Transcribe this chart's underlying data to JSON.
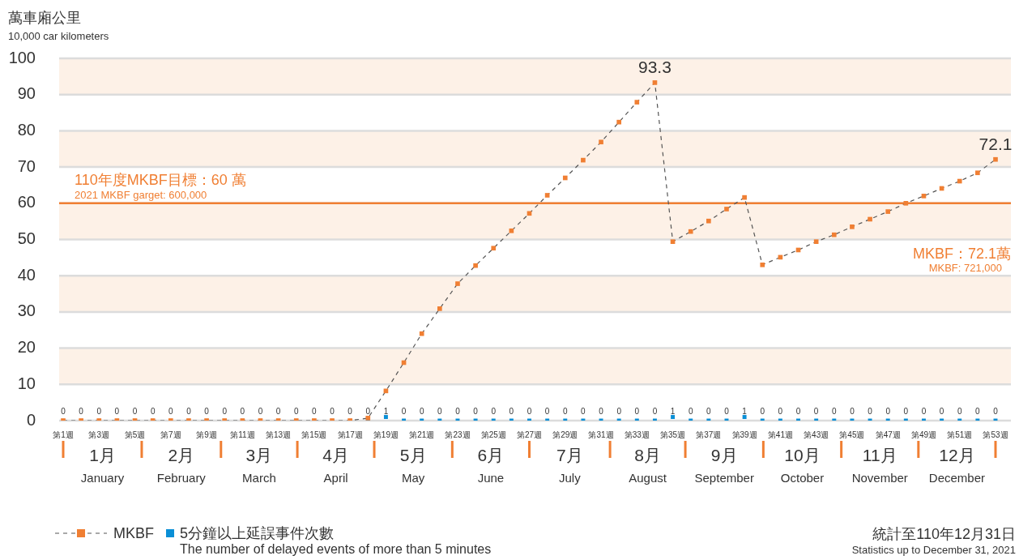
{
  "chart_data": {
    "type": "line",
    "ylabel": "萬車廂公里",
    "categories": [
      "第1週",
      null,
      "第3週",
      null,
      "第5週",
      null,
      "第7週",
      null,
      "第9週",
      null,
      "第11週",
      null,
      "第13週",
      null,
      "第15週",
      null,
      "第17週",
      null,
      "第19週",
      null,
      "第21週",
      null,
      "第23週",
      null,
      "第25週",
      null,
      "第27週",
      null,
      "第29週",
      null,
      "第31週",
      null,
      "第33週",
      null,
      "第35週",
      null,
      "第37週",
      null,
      "第39週",
      null,
      "第41週",
      null,
      "第43週",
      null,
      "第45週",
      null,
      "第47週",
      null,
      "第49週",
      null,
      "第51週",
      null,
      "第53週"
    ],
    "series": [
      {
        "name": "MKBF",
        "type": "line",
        "color": "#f07f33",
        "values": [
          0,
          0,
          0,
          0,
          0,
          0,
          0,
          0,
          0,
          0,
          0,
          0,
          0,
          0,
          0,
          0,
          0,
          0.7,
          8.2,
          16.0,
          24.0,
          30.9,
          37.8,
          42.8,
          47.6,
          52.4,
          57.2,
          62.2,
          67.0,
          71.9,
          76.9,
          82.4,
          87.9,
          93.3,
          49.4,
          52.2,
          55.1,
          58.4,
          61.6,
          43.0,
          45.1,
          47.1,
          49.4,
          51.3,
          53.5,
          55.6,
          57.7,
          60.0,
          62.0,
          64.1,
          66.1,
          68.4,
          72.1
        ],
        "value_labels": [
          null,
          null,
          null,
          null,
          null,
          null,
          null,
          null,
          null,
          null,
          null,
          null,
          null,
          null,
          null,
          null,
          null,
          null,
          null,
          null,
          null,
          null,
          null,
          null,
          null,
          null,
          null,
          null,
          null,
          null,
          null,
          null,
          null,
          "93.3",
          null,
          null,
          null,
          null,
          null,
          null,
          null,
          null,
          null,
          null,
          null,
          null,
          null,
          null,
          null,
          null,
          null,
          null,
          "72.1"
        ]
      },
      {
        "name": "5分鐘以上延誤事件次數",
        "type": "scatter",
        "color": "#0a8fd6",
        "values": [
          null,
          null,
          null,
          null,
          null,
          null,
          null,
          null,
          null,
          null,
          null,
          null,
          null,
          null,
          null,
          null,
          null,
          0,
          1,
          0,
          0,
          0,
          0,
          0,
          0,
          0,
          0,
          0,
          0,
          0,
          0,
          0,
          0,
          0,
          1,
          0,
          0,
          0,
          1,
          0,
          0,
          0,
          0,
          0,
          0,
          0,
          0,
          0,
          0,
          0,
          0,
          0,
          0
        ],
        "value_labels": [
          "0",
          "0",
          "0",
          "0",
          "0",
          "0",
          "0",
          "0",
          "0",
          "0",
          "0",
          "0",
          "0",
          "0",
          "0",
          "0",
          "0",
          "0",
          "1",
          "0",
          "0",
          "0",
          "0",
          "0",
          "0",
          "0",
          "0",
          "0",
          "0",
          "0",
          "0",
          "0",
          "0",
          "0",
          "1",
          "0",
          "0",
          "0",
          "1",
          "0",
          "0",
          "0",
          "0",
          "0",
          "0",
          "0",
          "0",
          "0",
          "0",
          "0",
          "0",
          "0",
          "0"
        ]
      }
    ],
    "ylim": [
      0,
      100
    ],
    "yticks": [
      0,
      10,
      20,
      30,
      40,
      50,
      60,
      70,
      80,
      90,
      100
    ],
    "grid": "y",
    "bands": [
      {
        "axis": "y",
        "from": 10,
        "to": 20,
        "color": "#fdf1e7"
      },
      {
        "axis": "y",
        "from": 30,
        "to": 40,
        "color": "#fdf1e7"
      },
      {
        "axis": "y",
        "from": 50,
        "to": 60,
        "color": "#fdf1e7"
      },
      {
        "axis": "y",
        "from": 70,
        "to": 80,
        "color": "#fdf1e7"
      },
      {
        "axis": "y",
        "from": 90,
        "to": 100,
        "color": "#fdf1e7"
      }
    ],
    "ref_lines": [
      {
        "axis": "y",
        "value": 60,
        "label": "110年度MKBF目標：60 萬",
        "color": "#f07f33",
        "line_style": "solid"
      }
    ],
    "marker": "square",
    "line_style": "dashed",
    "legend": "bottom left",
    "annotations": [
      "10,000 car kilometers",
      "2021 MKBF garget: 600,000",
      "MKBF：72.1萬",
      "MKBF: 721,000",
      "統計至110年12月31日",
      "Statistics up to December 31, 2021",
      "The number of delayed events of more than 5 minutes",
      "1月",
      "January",
      "2月",
      "February",
      "3月",
      "March",
      "4月",
      "April",
      "5月",
      "May",
      "6月",
      "June",
      "7月",
      "July",
      "8月",
      "August",
      "9月",
      "September",
      "10月",
      "October",
      "11月",
      "November",
      "12月",
      "December"
    ]
  }
}
